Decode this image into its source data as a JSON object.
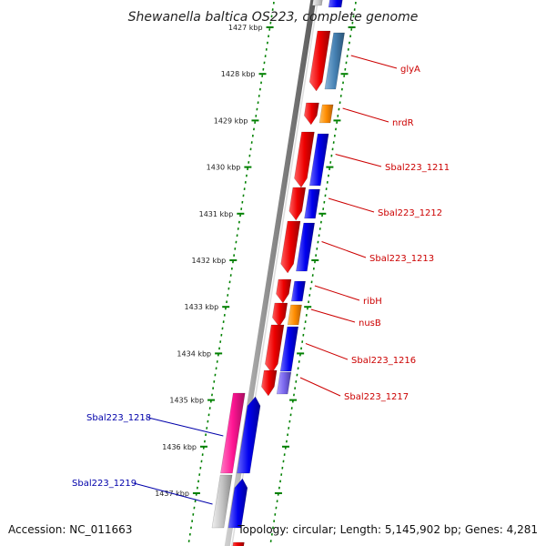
{
  "title": "Shewanella baltica OS223, complete genome",
  "accession": "Accession: NC_011663",
  "topology": "Topology: circular; Length: 5,145,902 bp; Genes: 4,281",
  "colors": {
    "forward_label": "#cc0000",
    "reverse_label": "#0000aa",
    "red": "#e00000",
    "blue": "#0000ee",
    "steelblue": "#4682b4",
    "orange": "#ff8c00",
    "purple": "#7b68ee",
    "pink": "#ff1493",
    "grey": "#b4b4b4",
    "tick_green": "#008000"
  },
  "kbp_ticks": [
    "1427 kbp",
    "1428 kbp",
    "1429 kbp",
    "1430 kbp",
    "1431 kbp",
    "1432 kbp",
    "1433 kbp",
    "1434 kbp",
    "1435 kbp",
    "1436 kbp",
    "1437 kbp"
  ],
  "forward_genes": [
    {
      "label": "glyA",
      "color": "steelblue"
    },
    {
      "label": "nrdR",
      "color": "orange"
    },
    {
      "label": "Sbal223_1211",
      "color": "blue"
    },
    {
      "label": "Sbal223_1212",
      "color": "blue"
    },
    {
      "label": "Sbal223_1213",
      "color": "blue"
    },
    {
      "label": "ribH",
      "color": "blue"
    },
    {
      "label": "nusB",
      "color": "orange"
    },
    {
      "label": "Sbal223_1216",
      "color": "blue"
    },
    {
      "label": "Sbal223_1217",
      "color": "purple"
    }
  ],
  "reverse_genes": [
    {
      "label": "Sbal223_1218",
      "color": "pink"
    },
    {
      "label": "Sbal223_1219",
      "color": "grey"
    }
  ]
}
